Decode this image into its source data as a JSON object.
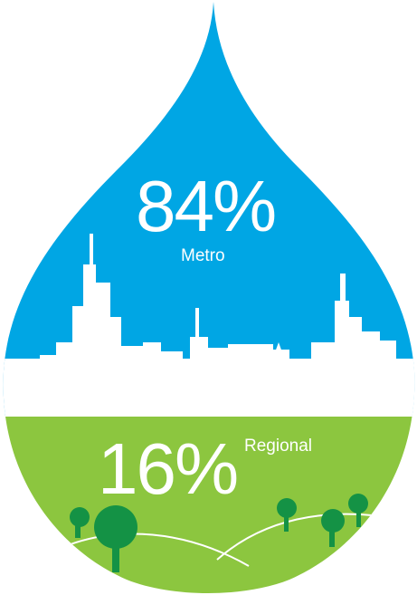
{
  "metro": {
    "percent": "84%",
    "label": "Metro"
  },
  "regional": {
    "percent": "16%",
    "label": "Regional"
  },
  "colors": {
    "water": "#00a6e4",
    "city": "#ffffff",
    "grass": "#8cc63f",
    "tree": "#149245"
  },
  "icons": [
    "water-drop",
    "city-skyline",
    "hills",
    "tree"
  ]
}
